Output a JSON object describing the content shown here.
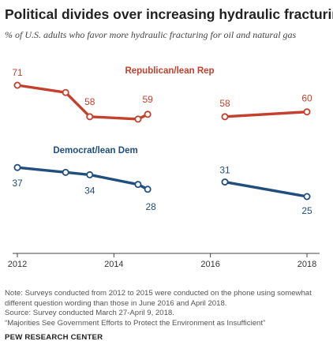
{
  "title": "Political divides over increasing hydraulic fracturing",
  "subtitle": "% of U.S. adults who favor more hydraulic fracturing for oil and natural gas",
  "notes": [
    "Note: Surveys conducted from 2012 to 2015 were conducted on the phone using somewhat",
    "different question wording than those in June 2016 and April 2018.",
    "Source: Survey conducted March 27-April 9, 2018.",
    "“Majorities See Government Efforts to Protect the Environment as Insufficient”"
  ],
  "source_org": "PEW RESEARCH CENTER",
  "colors": {
    "republican": "#c5402c",
    "democrat": "#1f4e7f",
    "axis": "#444444"
  },
  "chart_data": {
    "type": "line",
    "x_ticks": [
      "2012",
      "2014",
      "2016",
      "2018"
    ],
    "xlim": [
      2012,
      2018.6
    ],
    "ylim": [
      20,
      80
    ],
    "grid": false,
    "series": [
      {
        "name": "Republican/lean Rep",
        "color": "#c5402c",
        "segments": [
          [
            {
              "x": 2012.0,
              "y": 71
            },
            {
              "x": 2013.0,
              "y": 68
            },
            {
              "x": 2013.5,
              "y": 58
            },
            {
              "x": 2014.5,
              "y": 57
            },
            {
              "x": 2014.7,
              "y": 59
            }
          ],
          [
            {
              "x": 2016.3,
              "y": 58
            },
            {
              "x": 2018.0,
              "y": 60
            }
          ]
        ],
        "labels": [
          {
            "x": 2012.0,
            "y": 71,
            "text": "71"
          },
          {
            "x": 2013.5,
            "y": 58,
            "text": "58"
          },
          {
            "x": 2014.7,
            "y": 59,
            "text": "59"
          },
          {
            "x": 2016.3,
            "y": 58,
            "text": "58"
          },
          {
            "x": 2018.0,
            "y": 60,
            "text": "60"
          }
        ]
      },
      {
        "name": "Democrat/lean Dem",
        "color": "#1f4e7f",
        "segments": [
          [
            {
              "x": 2012.0,
              "y": 37
            },
            {
              "x": 2013.0,
              "y": 35
            },
            {
              "x": 2013.5,
              "y": 34
            },
            {
              "x": 2014.5,
              "y": 30
            },
            {
              "x": 2014.7,
              "y": 28
            }
          ],
          [
            {
              "x": 2016.3,
              "y": 31
            },
            {
              "x": 2018.0,
              "y": 25
            }
          ]
        ],
        "labels": [
          {
            "x": 2012.0,
            "y": 37,
            "text": "37"
          },
          {
            "x": 2013.5,
            "y": 34,
            "text": "34"
          },
          {
            "x": 2014.7,
            "y": 28,
            "text": "28"
          },
          {
            "x": 2016.3,
            "y": 31,
            "text": "31"
          },
          {
            "x": 2018.0,
            "y": 25,
            "text": "25"
          }
        ]
      }
    ]
  }
}
